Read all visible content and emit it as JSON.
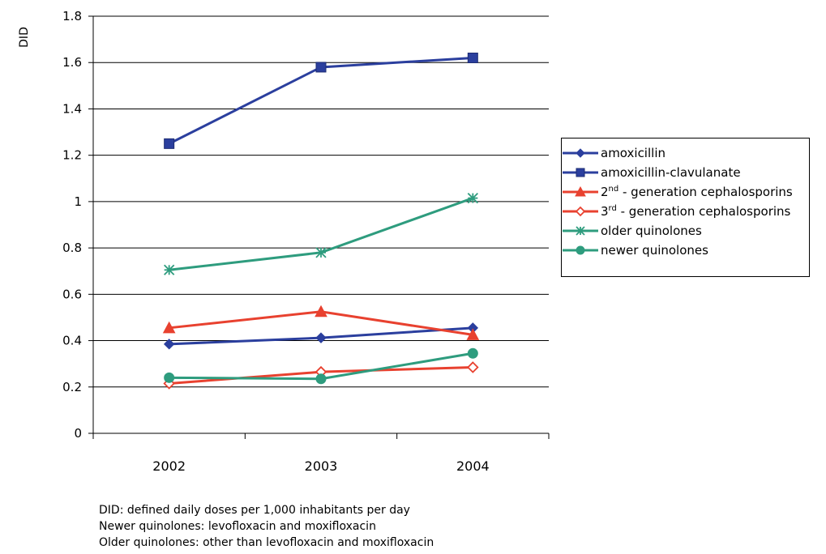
{
  "chart_data": {
    "type": "line",
    "ylabel": "DID",
    "xlabel": "",
    "categories": [
      "2002",
      "2003",
      "2004"
    ],
    "ylim": [
      0,
      1.8
    ],
    "ytick_step": 0.2,
    "yticks": [
      "0",
      "0.2",
      "0.4",
      "0.6",
      "0.8",
      "1",
      "1.2",
      "1.4",
      "1.6",
      "1.8"
    ],
    "grid": true,
    "legend_position": "right",
    "series": [
      {
        "name": "amoxicillin",
        "name_base": "amoxicillin",
        "name_sup": "",
        "name_rest": "",
        "color": "#2b3f9e",
        "marker": "diamond-filled",
        "values": [
          0.385,
          0.412,
          0.455
        ]
      },
      {
        "name": "amoxicillin-clavulanate",
        "name_base": "amoxicillin-clavulanate",
        "name_sup": "",
        "name_rest": "",
        "color": "#2b3f9e",
        "marker": "square-filled",
        "values": [
          1.25,
          1.58,
          1.62
        ]
      },
      {
        "name": "2nd - generation cephalosporins",
        "name_base": "2",
        "name_sup": "nd",
        "name_rest": " - generation cephalosporins",
        "color": "#e8412f",
        "marker": "triangle-filled",
        "values": [
          0.455,
          0.525,
          0.425
        ]
      },
      {
        "name": "3rd - generation cephalosporins",
        "name_base": "3",
        "name_sup": "rd",
        "name_rest": " - generation cephalosporins",
        "color": "#e8412f",
        "marker": "diamond-open",
        "values": [
          0.215,
          0.265,
          0.285
        ]
      },
      {
        "name": "older quinolones",
        "name_base": "older quinolones",
        "name_sup": "",
        "name_rest": "",
        "color": "#2e9c7e",
        "marker": "asterisk",
        "values": [
          0.705,
          0.78,
          1.015
        ]
      },
      {
        "name": "newer quinolones",
        "name_base": "newer quinolones",
        "name_sup": "",
        "name_rest": "",
        "color": "#2e9c7e",
        "marker": "circle-filled",
        "values": [
          0.24,
          0.235,
          0.345
        ]
      }
    ]
  },
  "notes": [
    "DID:  defined daily doses per 1,000 inhabitants per day",
    "Newer  quinolones: levofloxacin and moxifloxacin",
    "Older quinolones: other than levofloxacin and moxifloxacin"
  ]
}
